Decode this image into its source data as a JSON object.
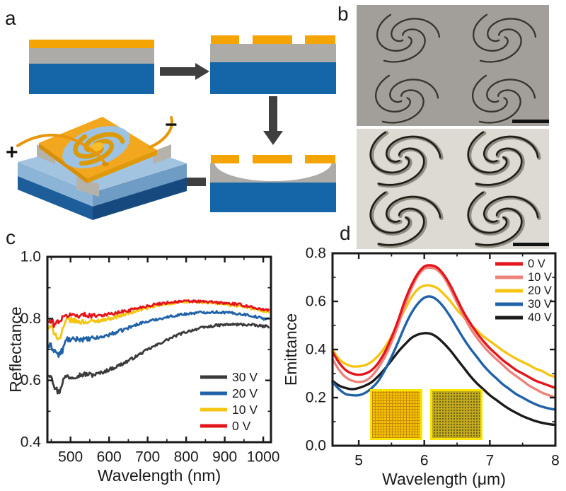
{
  "figure": {
    "background": "#ffffff",
    "panel_labels": {
      "a": "a",
      "b": "b",
      "c": "c",
      "d": "d"
    }
  },
  "panel_a": {
    "description": "fabrication-process-diagram",
    "plus_label": "+",
    "minus_label": "−"
  },
  "panel_b": {
    "sem_top": {
      "background": "#A29F9A",
      "spiral_color": "#37342E"
    },
    "sem_bottom": {
      "background": "#DCDAD3",
      "spiral_color": "#8E8B80",
      "spiral_shadow": "#1F1D16"
    },
    "scale_bar_color": "#111111"
  },
  "panel_d_insets": {
    "left": {
      "background": "#F2C400",
      "grid": "#C8880A",
      "border": "#F8E400"
    },
    "right": {
      "background": "#6E6714",
      "grid": "#C2A81E",
      "border": "#F8E400"
    }
  },
  "palette": {
    "gold": "#F4A405",
    "layer_gray": "#ADABA7",
    "layer_blue": "#1466A9",
    "arrow": "#3F3F3F",
    "plate_gold": "#F2A71F",
    "plate_shade1": "#D88F07",
    "plate_shade2": "#E09A08",
    "slab_top": "#A3C4E1",
    "slab_left": "#8CB4D6",
    "slab_right": "#6F9CC4",
    "slab_dark1": "#1D5D99",
    "slab_dark2": "#164A7E",
    "post_gray": "#B5B2AC",
    "wire": "#E8960A",
    "hole_blue": "#9EC3E2",
    "spiral_gold": "#DB9A08",
    "spiral_center": "#F5BE2A",
    "red": "#E4151B",
    "salmon": "#EC837B",
    "yellow": "#F5C513",
    "curve_blue": "#2062A7",
    "dark_gray": "#3B3B3D",
    "near_black": "#1B1919"
  },
  "chart_data": [
    {
      "panel": "c",
      "type": "line",
      "title": "",
      "xlabel": "Wavelength (nm)",
      "ylabel": "Reflectance",
      "xlim": [
        440,
        1020
      ],
      "ylim": [
        0.4,
        1.0
      ],
      "xticks": [
        500,
        600,
        700,
        800,
        900,
        1000
      ],
      "xtick_labels": [
        "500",
        "600",
        "700",
        "800",
        "900",
        "1000"
      ],
      "xminor": [
        450,
        550,
        650,
        750,
        850,
        950
      ],
      "yticks": [
        0.4,
        0.6,
        0.8,
        1.0
      ],
      "ytick_labels": [
        "0.4",
        "0.6",
        "0.8",
        "1.0"
      ],
      "yminor": [
        0.5,
        0.7,
        0.9
      ],
      "grid": false,
      "legend_position": "lower right",
      "noisy": true,
      "draw_order": [
        0,
        1,
        2,
        3
      ],
      "series": [
        {
          "name": "30 V",
          "color": "#3B3B3D",
          "x": [
            450,
            460,
            470,
            480,
            490,
            500,
            520,
            540,
            560,
            580,
            600,
            620,
            640,
            660,
            680,
            700,
            720,
            740,
            760,
            780,
            800,
            820,
            840,
            860,
            880,
            900,
            920,
            940,
            960,
            980,
            1000
          ],
          "y": [
            0.62,
            0.575,
            0.56,
            0.6,
            0.615,
            0.61,
            0.617,
            0.62,
            0.618,
            0.625,
            0.635,
            0.645,
            0.657,
            0.67,
            0.685,
            0.7,
            0.712,
            0.725,
            0.737,
            0.748,
            0.757,
            0.764,
            0.77,
            0.774,
            0.778,
            0.78,
            0.781,
            0.781,
            0.78,
            0.778,
            0.775
          ]
        },
        {
          "name": "20 V",
          "color": "#2062A7",
          "x": [
            450,
            460,
            470,
            480,
            490,
            500,
            520,
            540,
            560,
            580,
            600,
            620,
            640,
            660,
            680,
            700,
            720,
            740,
            760,
            780,
            800,
            820,
            840,
            860,
            880,
            900,
            920,
            940,
            960,
            980,
            1000
          ],
          "y": [
            0.71,
            0.695,
            0.68,
            0.7,
            0.735,
            0.73,
            0.735,
            0.732,
            0.736,
            0.74,
            0.748,
            0.756,
            0.765,
            0.775,
            0.785,
            0.79,
            0.797,
            0.802,
            0.807,
            0.812,
            0.815,
            0.818,
            0.82,
            0.821,
            0.821,
            0.82,
            0.818,
            0.815,
            0.812,
            0.806,
            0.8
          ]
        },
        {
          "name": "10 V",
          "color": "#F5C513",
          "x": [
            450,
            460,
            470,
            480,
            490,
            500,
            520,
            540,
            560,
            580,
            600,
            620,
            640,
            660,
            680,
            700,
            720,
            740,
            760,
            780,
            800,
            820,
            840,
            860,
            880,
            900,
            920,
            940,
            960,
            980,
            1000
          ],
          "y": [
            0.77,
            0.755,
            0.73,
            0.76,
            0.8,
            0.795,
            0.79,
            0.79,
            0.79,
            0.795,
            0.8,
            0.806,
            0.813,
            0.82,
            0.828,
            0.834,
            0.84,
            0.845,
            0.849,
            0.852,
            0.853,
            0.854,
            0.853,
            0.851,
            0.849,
            0.846,
            0.843,
            0.84,
            0.836,
            0.83,
            0.824
          ]
        },
        {
          "name": "0 V",
          "color": "#E4151B",
          "x": [
            450,
            460,
            470,
            480,
            490,
            500,
            520,
            540,
            560,
            580,
            600,
            620,
            640,
            660,
            680,
            700,
            720,
            740,
            760,
            780,
            800,
            820,
            840,
            860,
            880,
            900,
            920,
            940,
            960,
            980,
            1000
          ],
          "y": [
            0.79,
            0.78,
            0.795,
            0.8,
            0.81,
            0.812,
            0.81,
            0.812,
            0.81,
            0.812,
            0.814,
            0.818,
            0.824,
            0.83,
            0.836,
            0.841,
            0.846,
            0.85,
            0.853,
            0.855,
            0.856,
            0.856,
            0.855,
            0.854,
            0.852,
            0.85,
            0.848,
            0.845,
            0.84,
            0.835,
            0.828
          ]
        }
      ]
    },
    {
      "panel": "d",
      "type": "line",
      "title": "",
      "xlabel": "Wavelength (μm)",
      "ylabel": "Emittance",
      "xlim": [
        4.6,
        8.0
      ],
      "ylim": [
        0.0,
        0.8
      ],
      "xticks": [
        5,
        6,
        7,
        8
      ],
      "xtick_labels": [
        "5",
        "6",
        "7",
        "8"
      ],
      "xminor": [
        5.5,
        6.5,
        7.5
      ],
      "yticks": [
        0.0,
        0.2,
        0.4,
        0.6,
        0.8
      ],
      "ytick_labels": [
        "0.0",
        "0.2",
        "0.4",
        "0.6",
        "0.8"
      ],
      "yminor": [
        0.1,
        0.3,
        0.5,
        0.7
      ],
      "grid": false,
      "legend_position": "upper right",
      "noisy": false,
      "draw_order": [
        4,
        3,
        2,
        1,
        0
      ],
      "series": [
        {
          "name": "0 V",
          "color": "#E4151B",
          "x": [
            4.6,
            4.7,
            4.8,
            4.9,
            5.0,
            5.1,
            5.2,
            5.3,
            5.4,
            5.5,
            5.6,
            5.7,
            5.8,
            5.9,
            6.0,
            6.1,
            6.2,
            6.3,
            6.4,
            6.5,
            6.6,
            6.7,
            6.8,
            6.9,
            7.0,
            7.1,
            7.2,
            7.3,
            7.4,
            7.5,
            7.6,
            7.7,
            7.8,
            7.9,
            8.0
          ],
          "y": [
            0.39,
            0.345,
            0.315,
            0.3,
            0.295,
            0.3,
            0.315,
            0.345,
            0.39,
            0.45,
            0.52,
            0.6,
            0.665,
            0.715,
            0.745,
            0.75,
            0.74,
            0.71,
            0.665,
            0.61,
            0.555,
            0.51,
            0.47,
            0.435,
            0.405,
            0.38,
            0.355,
            0.335,
            0.315,
            0.3,
            0.285,
            0.27,
            0.26,
            0.25,
            0.24
          ]
        },
        {
          "name": "10 V",
          "color": "#EC837B",
          "x": [
            4.6,
            4.7,
            4.8,
            4.9,
            5.0,
            5.1,
            5.2,
            5.3,
            5.4,
            5.5,
            5.6,
            5.7,
            5.8,
            5.9,
            6.0,
            6.1,
            6.2,
            6.3,
            6.4,
            6.5,
            6.6,
            6.7,
            6.8,
            6.9,
            7.0,
            7.1,
            7.2,
            7.3,
            7.4,
            7.5,
            7.6,
            7.7,
            7.8,
            7.9,
            8.0
          ],
          "y": [
            0.36,
            0.315,
            0.285,
            0.27,
            0.265,
            0.27,
            0.29,
            0.325,
            0.37,
            0.43,
            0.5,
            0.58,
            0.65,
            0.705,
            0.735,
            0.74,
            0.73,
            0.7,
            0.65,
            0.595,
            0.54,
            0.49,
            0.45,
            0.415,
            0.385,
            0.36,
            0.335,
            0.31,
            0.29,
            0.27,
            0.25,
            0.235,
            0.22,
            0.21,
            0.2
          ]
        },
        {
          "name": "20 V",
          "color": "#F5C513",
          "x": [
            4.6,
            4.7,
            4.8,
            4.9,
            5.0,
            5.1,
            5.2,
            5.3,
            5.4,
            5.5,
            5.6,
            5.7,
            5.8,
            5.9,
            6.0,
            6.1,
            6.2,
            6.3,
            6.4,
            6.5,
            6.6,
            6.7,
            6.8,
            6.9,
            7.0,
            7.1,
            7.2,
            7.3,
            7.4,
            7.5,
            7.6,
            7.7,
            7.8,
            7.9,
            8.0
          ],
          "y": [
            0.4,
            0.36,
            0.34,
            0.33,
            0.33,
            0.335,
            0.35,
            0.375,
            0.41,
            0.455,
            0.51,
            0.565,
            0.615,
            0.65,
            0.665,
            0.665,
            0.655,
            0.63,
            0.6,
            0.565,
            0.535,
            0.505,
            0.48,
            0.455,
            0.435,
            0.415,
            0.395,
            0.378,
            0.362,
            0.348,
            0.335,
            0.32,
            0.31,
            0.295,
            0.285
          ]
        },
        {
          "name": "30 V",
          "color": "#2062A7",
          "x": [
            4.6,
            4.7,
            4.8,
            4.9,
            5.0,
            5.1,
            5.2,
            5.3,
            5.4,
            5.5,
            5.6,
            5.7,
            5.8,
            5.9,
            6.0,
            6.1,
            6.2,
            6.3,
            6.4,
            6.5,
            6.6,
            6.7,
            6.8,
            6.9,
            7.0,
            7.1,
            7.2,
            7.3,
            7.4,
            7.5,
            7.6,
            7.7,
            7.8,
            7.9,
            8.0
          ],
          "y": [
            0.265,
            0.235,
            0.215,
            0.21,
            0.21,
            0.22,
            0.24,
            0.27,
            0.315,
            0.37,
            0.43,
            0.495,
            0.55,
            0.59,
            0.615,
            0.62,
            0.605,
            0.575,
            0.535,
            0.49,
            0.445,
            0.405,
            0.37,
            0.335,
            0.305,
            0.28,
            0.255,
            0.235,
            0.215,
            0.2,
            0.185,
            0.172,
            0.162,
            0.155,
            0.15
          ]
        },
        {
          "name": "40 V",
          "color": "#1B1919",
          "x": [
            4.6,
            4.7,
            4.8,
            4.9,
            5.0,
            5.1,
            5.2,
            5.3,
            5.4,
            5.5,
            5.6,
            5.7,
            5.8,
            5.9,
            6.0,
            6.1,
            6.2,
            6.3,
            6.4,
            6.5,
            6.6,
            6.7,
            6.8,
            6.9,
            7.0,
            7.1,
            7.2,
            7.3,
            7.4,
            7.5,
            7.6,
            7.7,
            7.8,
            7.9,
            8.0
          ],
          "y": [
            0.27,
            0.25,
            0.24,
            0.235,
            0.24,
            0.25,
            0.265,
            0.29,
            0.32,
            0.355,
            0.39,
            0.42,
            0.447,
            0.462,
            0.468,
            0.465,
            0.45,
            0.425,
            0.395,
            0.36,
            0.325,
            0.29,
            0.26,
            0.235,
            0.21,
            0.19,
            0.17,
            0.152,
            0.137,
            0.123,
            0.112,
            0.102,
            0.095,
            0.09,
            0.087
          ]
        }
      ]
    }
  ]
}
